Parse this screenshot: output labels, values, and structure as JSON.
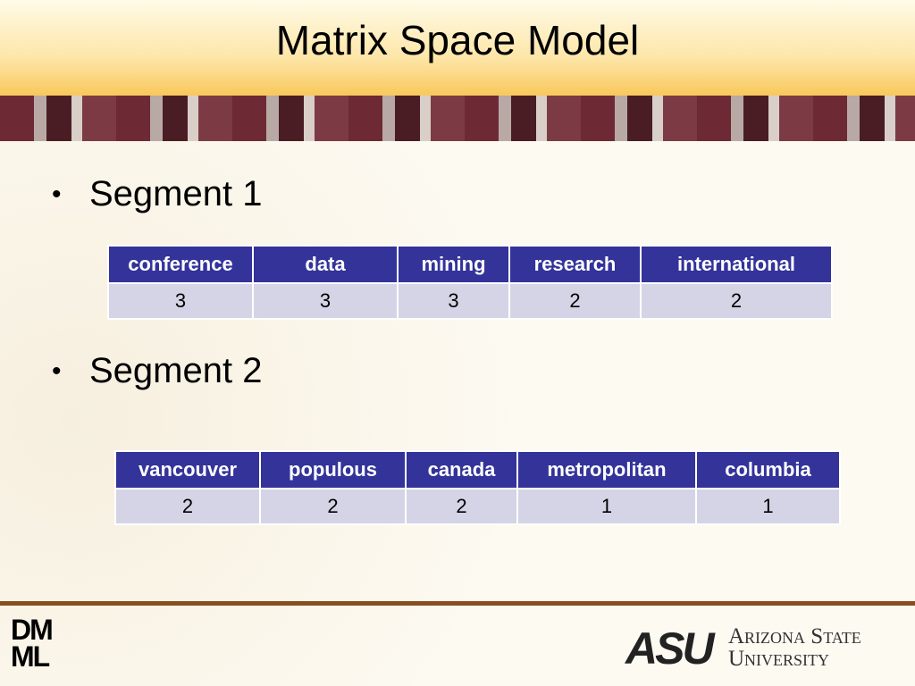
{
  "header": {
    "title": "Matrix Space Model"
  },
  "segments": [
    {
      "label": "Segment 1",
      "headers": [
        "conference",
        "data",
        "mining",
        "research",
        "international"
      ],
      "values": [
        3,
        3,
        3,
        2,
        2
      ]
    },
    {
      "label": "Segment 2",
      "headers": [
        "vancouver",
        "populous",
        "canada",
        "metropolitan",
        "columbia"
      ],
      "values": [
        2,
        2,
        2,
        1,
        1
      ]
    }
  ],
  "footer": {
    "logo_left": [
      "DM",
      "ML"
    ],
    "logo_right": "ASU",
    "university": [
      "Arizona State",
      "University"
    ]
  }
}
